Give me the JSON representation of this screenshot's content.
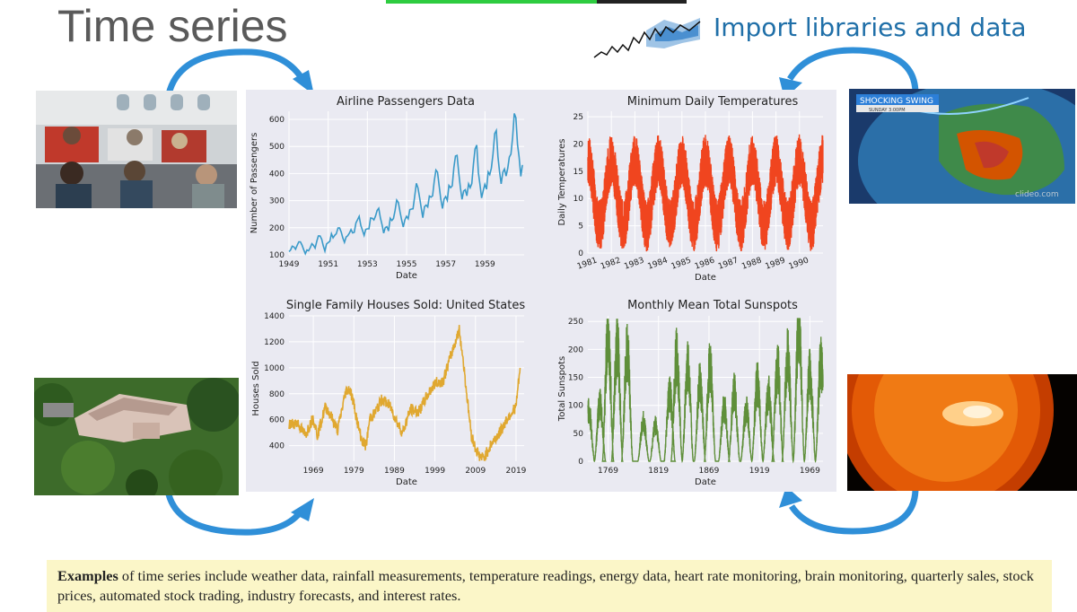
{
  "slide": {
    "title": "Time series",
    "import_label": "Import libraries and data",
    "footer_bold": "Examples",
    "footer_text": " of time series include weather data, rainfall measurements, temperature readings, energy data, heart rate monitoring, brain monitoring, quarterly sales, stock prices, automated stock trading, industry forecasts, and interest rates.",
    "weather_card": {
      "headline": "SHOCKING SWING",
      "subline": "SUNDAY 3:00PM",
      "watermark": "clideo.com"
    }
  },
  "colors": {
    "airline": "#3a9ac9",
    "temps": "#f0451f",
    "houses": "#e0a830",
    "sunspots": "#5f8f3a",
    "panel": "#eaeaf2",
    "accent_blue": "#1f6fa8",
    "footer_bg": "#fbf6c8"
  },
  "chart_data": [
    {
      "type": "line",
      "title": "Airline Passengers Data",
      "xlabel": "Date",
      "ylabel": "Number of Passengers",
      "x_ticks": [
        "1949",
        "1951",
        "1953",
        "1955",
        "1957",
        "1959"
      ],
      "y_ticks": [
        "100",
        "200",
        "300",
        "400",
        "500",
        "600"
      ],
      "xlim": [
        1949,
        1961
      ],
      "ylim": [
        100,
        630
      ],
      "series": [
        {
          "x_start": 1949,
          "x_step": 0.0833,
          "values": [
            112,
            118,
            132,
            129,
            121,
            135,
            148,
            148,
            136,
            119,
            104,
            118,
            115,
            126,
            141,
            135,
            125,
            149,
            170,
            170,
            158,
            133,
            114,
            140,
            145,
            150,
            178,
            163,
            172,
            178,
            199,
            199,
            184,
            162,
            146,
            166,
            171,
            180,
            193,
            181,
            183,
            218,
            230,
            242,
            209,
            191,
            172,
            194,
            196,
            196,
            236,
            235,
            229,
            243,
            264,
            272,
            237,
            211,
            180,
            201,
            204,
            188,
            235,
            227,
            234,
            264,
            302,
            293,
            259,
            229,
            203,
            229,
            242,
            233,
            267,
            269,
            270,
            315,
            364,
            347,
            312,
            274,
            237,
            278,
            284,
            277,
            317,
            313,
            318,
            374,
            413,
            405,
            355,
            306,
            271,
            306,
            315,
            301,
            356,
            348,
            355,
            422,
            465,
            467,
            404,
            347,
            305,
            336,
            340,
            318,
            362,
            348,
            363,
            435,
            491,
            505,
            404,
            359,
            310,
            337,
            360,
            342,
            406,
            396,
            420,
            472,
            548,
            559,
            463,
            407,
            362,
            405,
            417,
            391,
            419,
            461,
            472,
            535,
            622,
            606,
            508,
            461,
            390,
            432
          ]
        }
      ]
    },
    {
      "type": "line",
      "title": "Minimum Daily Temperatures",
      "xlabel": "Date",
      "ylabel": "Daily Temperatures",
      "x_ticks": [
        "1981",
        "1982",
        "1983",
        "1984",
        "1985",
        "1986",
        "1987",
        "1988",
        "1989",
        "1990"
      ],
      "y_ticks": [
        "0",
        "5",
        "10",
        "15",
        "20",
        "25"
      ],
      "xlim": [
        1981,
        1991
      ],
      "ylim": [
        0,
        26
      ],
      "series": [
        {
          "description_of_shape": "seasonal oscillation, peaks ~18-25 in January, troughs ~1-5 in July, noisy daily values",
          "x_start": 1981,
          "x_end": 1991,
          "mean": 11,
          "amplitude": 6,
          "noise": 3
        }
      ]
    },
    {
      "type": "line",
      "title": "Single Family Houses Sold: United States",
      "xlabel": "Date",
      "ylabel": "Houses Sold",
      "x_ticks": [
        "1969",
        "1979",
        "1989",
        "1999",
        "2009",
        "2019"
      ],
      "y_ticks": [
        "400",
        "600",
        "800",
        "1000",
        "1200",
        "1400"
      ],
      "xlim": [
        1963,
        2021
      ],
      "ylim": [
        280,
        1400
      ],
      "series": [
        {
          "x": [
            1963,
            1965,
            1967,
            1969,
            1970,
            1972,
            1973,
            1975,
            1977,
            1978,
            1979,
            1980,
            1981,
            1982,
            1983,
            1984,
            1986,
            1988,
            1990,
            1991,
            1993,
            1995,
            1997,
            1999,
            2001,
            2003,
            2004,
            2005,
            2006,
            2007,
            2008,
            2009,
            2010,
            2011,
            2013,
            2015,
            2017,
            2019,
            2020
          ],
          "values": [
            560,
            580,
            480,
            620,
            480,
            700,
            650,
            520,
            820,
            840,
            720,
            560,
            440,
            400,
            620,
            640,
            760,
            700,
            560,
            500,
            680,
            660,
            780,
            880,
            900,
            1100,
            1200,
            1290,
            1050,
            750,
            480,
            380,
            320,
            300,
            420,
            500,
            620,
            700,
            1000
          ]
        }
      ]
    },
    {
      "type": "line",
      "title": "Monthly Mean Total Sunspots",
      "xlabel": "Date",
      "ylabel": "Total Sunspots",
      "x_ticks": [
        "1769",
        "1819",
        "1869",
        "1919",
        "1969"
      ],
      "y_ticks": [
        "0",
        "50",
        "100",
        "150",
        "200",
        "250"
      ],
      "xlim": [
        1749,
        1982
      ],
      "ylim": [
        0,
        260
      ],
      "series": [
        {
          "cycle_peaks": [
            {
              "x": 1750,
              "y": 95
            },
            {
              "x": 1761,
              "y": 110
            },
            {
              "x": 1769,
              "y": 240
            },
            {
              "x": 1778,
              "y": 225
            },
            {
              "x": 1788,
              "y": 210
            },
            {
              "x": 1804,
              "y": 75
            },
            {
              "x": 1816,
              "y": 70
            },
            {
              "x": 1830,
              "y": 130
            },
            {
              "x": 1837,
              "y": 200
            },
            {
              "x": 1848,
              "y": 180
            },
            {
              "x": 1860,
              "y": 150
            },
            {
              "x": 1870,
              "y": 185
            },
            {
              "x": 1884,
              "y": 105
            },
            {
              "x": 1894,
              "y": 135
            },
            {
              "x": 1906,
              "y": 100
            },
            {
              "x": 1917,
              "y": 150
            },
            {
              "x": 1928,
              "y": 130
            },
            {
              "x": 1937,
              "y": 185
            },
            {
              "x": 1947,
              "y": 200
            },
            {
              "x": 1958,
              "y": 255
            },
            {
              "x": 1969,
              "y": 170
            },
            {
              "x": 1980,
              "y": 190
            }
          ]
        }
      ]
    }
  ]
}
